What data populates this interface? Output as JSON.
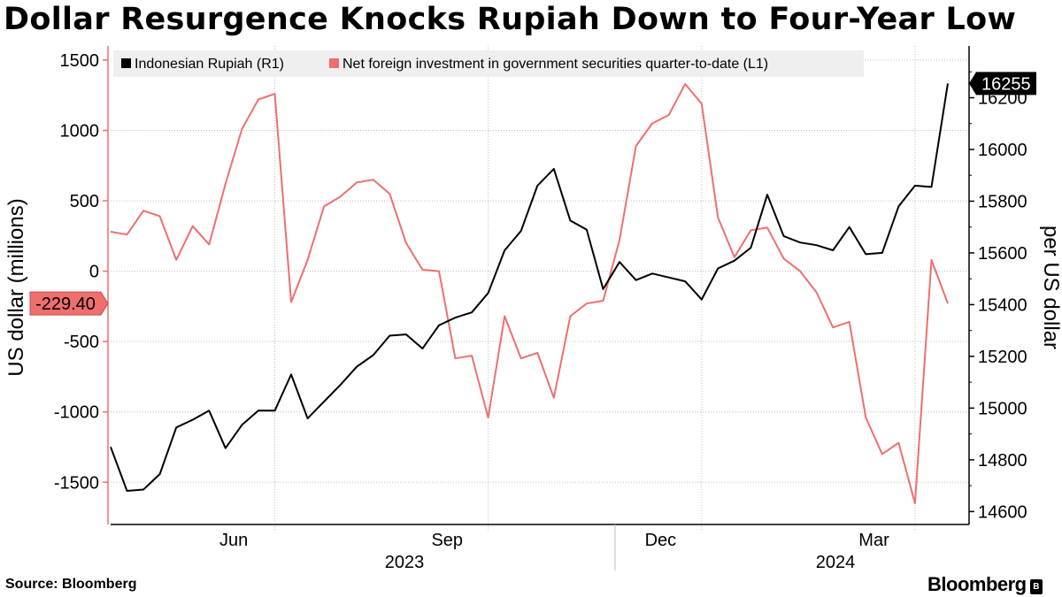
{
  "header": {
    "title": "Dollar Resurgence Knocks Rupiah Down to Four-Year Low"
  },
  "footer": {
    "source": "Source: Bloomberg",
    "brand": "Bloomberg"
  },
  "chart_data": {
    "type": "line",
    "title": "Dollar Resurgence Knocks Rupiah Down to Four-Year Low",
    "x_labels": [
      "Jun",
      "Sep",
      "Dec",
      "Mar"
    ],
    "year_labels": [
      "2023",
      "2024"
    ],
    "left_axis": {
      "label": "US dollar (millions)",
      "ticks": [
        "1500",
        "1000",
        "500",
        "0",
        "-500",
        "-1000",
        "-1500"
      ],
      "range": [
        -1800,
        1600
      ]
    },
    "right_axis": {
      "label": "per US dollar",
      "ticks": [
        "16200",
        "16000",
        "15800",
        "15600",
        "15400",
        "15200",
        "15000",
        "14800",
        "14600"
      ],
      "range": [
        14550,
        16400
      ]
    },
    "legend": {
      "rupiah": "Indonesian Rupiah  (R1)",
      "flows": "Net foreign investment in government securities quarter-to-date (L1)"
    },
    "series": [
      {
        "name": "Indonesian Rupiah (R1)",
        "axis": "right",
        "color": "#000000",
        "last_value_label": "16255",
        "values": [
          14850,
          14680,
          14685,
          14745,
          14925,
          14955,
          14990,
          14845,
          14935,
          14990,
          14990,
          15130,
          14960,
          15025,
          15090,
          15160,
          15205,
          15280,
          15285,
          15230,
          15320,
          15350,
          15370,
          15445,
          15610,
          15685,
          15860,
          15925,
          15725,
          15690,
          15460,
          15565,
          15495,
          15520,
          15505,
          15490,
          15420,
          15540,
          15570,
          15620,
          15825,
          15665,
          15640,
          15630,
          15610,
          15700,
          15595,
          15600,
          15780,
          15860,
          15855,
          16255
        ]
      },
      {
        "name": "Net foreign investment in government securities quarter-to-date (L1)",
        "axis": "left",
        "color": "#f06e6e",
        "last_value_label": "-229.40",
        "values": [
          280,
          260,
          430,
          390,
          80,
          320,
          190,
          620,
          1010,
          1220,
          1260,
          -220,
          80,
          460,
          530,
          630,
          650,
          550,
          200,
          10,
          0,
          -620,
          -600,
          -1040,
          -320,
          -620,
          -580,
          -900,
          -320,
          -230,
          -210,
          220,
          890,
          1050,
          1110,
          1330,
          1190,
          380,
          100,
          290,
          310,
          90,
          0,
          -150,
          -400,
          -360,
          -1040,
          -1300,
          -1220,
          -1650,
          80,
          -229.4
        ]
      }
    ]
  }
}
